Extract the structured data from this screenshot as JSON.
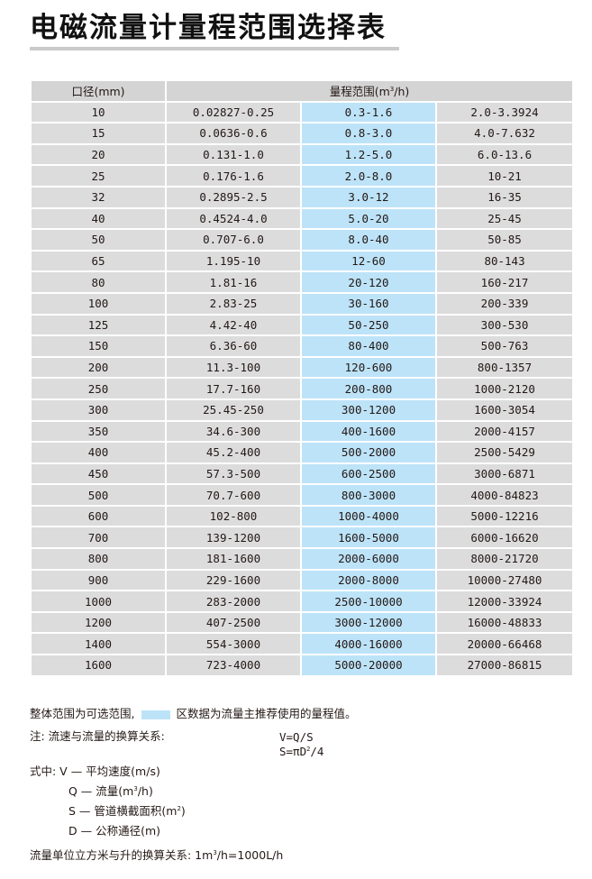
{
  "title": "电磁流量计量程范围选择表",
  "table": {
    "header_diameter": "口径(mm)",
    "header_range": "量程范围(m",
    "header_range_sup": "3",
    "header_range_tail": "/h)",
    "rows": [
      [
        "10",
        "0.02827-0.25",
        "0.3-1.6",
        "2.0-3.3924"
      ],
      [
        "15",
        "0.0636-0.6",
        "0.8-3.0",
        "4.0-7.632"
      ],
      [
        "20",
        "0.131-1.0",
        "1.2-5.0",
        "6.0-13.6"
      ],
      [
        "25",
        "0.176-1.6",
        "2.0-8.0",
        "10-21"
      ],
      [
        "32",
        "0.2895-2.5",
        "3.0-12",
        "16-35"
      ],
      [
        "40",
        "0.4524-4.0",
        "5.0-20",
        "25-45"
      ],
      [
        "50",
        "0.707-6.0",
        "8.0-40",
        "50-85"
      ],
      [
        "65",
        "1.195-10",
        "12-60",
        "80-143"
      ],
      [
        "80",
        "1.81-16",
        "20-120",
        "160-217"
      ],
      [
        "100",
        "2.83-25",
        "30-160",
        "200-339"
      ],
      [
        "125",
        "4.42-40",
        "50-250",
        "300-530"
      ],
      [
        "150",
        "6.36-60",
        "80-400",
        "500-763"
      ],
      [
        "200",
        "11.3-100",
        "120-600",
        "800-1357"
      ],
      [
        "250",
        "17.7-160",
        "200-800",
        "1000-2120"
      ],
      [
        "300",
        "25.45-250",
        "300-1200",
        "1600-3054"
      ],
      [
        "350",
        "34.6-300",
        "400-1600",
        "2000-4157"
      ],
      [
        "400",
        "45.2-400",
        "500-2000",
        "2500-5429"
      ],
      [
        "450",
        "57.3-500",
        "600-2500",
        "3000-6871"
      ],
      [
        "500",
        "70.7-600",
        "800-3000",
        "4000-84823"
      ],
      [
        "600",
        "102-800",
        "1000-4000",
        "5000-12216"
      ],
      [
        "700",
        "139-1200",
        "1600-5000",
        "6000-16620"
      ],
      [
        "800",
        "181-1600",
        "2000-6000",
        "8000-21720"
      ],
      [
        "900",
        "229-1600",
        "2000-8000",
        "10000-27480"
      ],
      [
        "1000",
        "283-2000",
        "2500-10000",
        "12000-33924"
      ],
      [
        "1200",
        "407-2500",
        "3000-12000",
        "16000-48833"
      ],
      [
        "1400",
        "554-3000",
        "4000-16000",
        "20000-66468"
      ],
      [
        "1600",
        "723-4000",
        "5000-20000",
        "27000-86815"
      ]
    ]
  },
  "colors": {
    "recommended": "#bde3f8",
    "cell": "#dcdcdd",
    "header": "#d4d4d5"
  },
  "notes": {
    "overall_pre": "整体范围为可选范围,",
    "overall_post": "区数据为流量主推荐使用的量程值。",
    "conversion_label": "注: 流速与流量的换算关系:",
    "formula1": "V=Q/S",
    "formula2_pre": "S=πD",
    "formula2_sup": "2",
    "formula2_post": "/4",
    "where_label": "式中: V — 平均速度(m/s)",
    "q_pre": "Q — 流量(m",
    "q_sup": "3",
    "q_post": "/h)",
    "s_pre": "S — 管道横截面积(m",
    "s_sup": "2",
    "s_post": ")",
    "d_line": "D — 公称通径(m)",
    "unit_pre": "流量单位立方米与升的换算关系: 1m",
    "unit_sup": "3",
    "unit_post": "/h=1000L/h"
  }
}
